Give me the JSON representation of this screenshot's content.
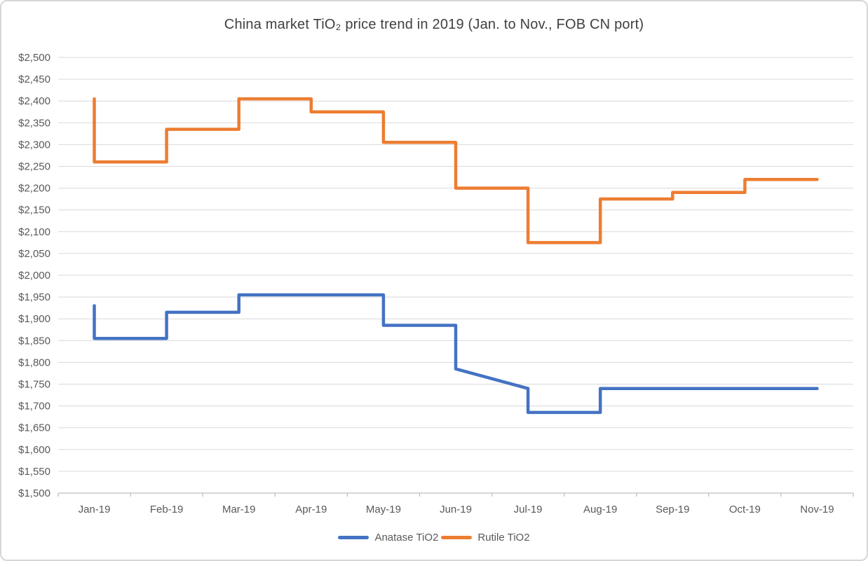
{
  "frame": {
    "background": "#ffffff",
    "border_color": "#d6d6d6"
  },
  "chart_data": {
    "type": "line",
    "line_style": "step",
    "title": "China market TiO₂ price trend in 2019 (Jan. to Nov., FOB CN port)",
    "title_color": "#404040",
    "xlabel": "",
    "ylabel": "",
    "categories": [
      "Jan-19",
      "Feb-19",
      "Mar-19",
      "Apr-19",
      "May-19",
      "Jun-19",
      "Jul-19",
      "Aug-19",
      "Sep-19",
      "Oct-19",
      "Nov-19"
    ],
    "y_axis": {
      "min": 1500,
      "max": 2500,
      "step": 50,
      "tick_values": [
        1500,
        1550,
        1600,
        1650,
        1700,
        1750,
        1800,
        1850,
        1900,
        1950,
        2000,
        2050,
        2100,
        2150,
        2200,
        2250,
        2300,
        2350,
        2400,
        2450,
        2500
      ],
      "tick_labels": [
        "$1,500",
        "$1,550",
        "$1,600",
        "$1,650",
        "$1,700",
        "$1,750",
        "$1,800",
        "$1,850",
        "$1,900",
        "$1,950",
        "$2,000",
        "$2,050",
        "$2,100",
        "$2,150",
        "$2,200",
        "$2,250",
        "$2,300",
        "$2,350",
        "$2,400",
        "$2,450",
        "$2,500"
      ]
    },
    "grid": true,
    "gridline_color": "#d9d9d9",
    "axis_line_color": "#bfbfbf",
    "text_color": "#595959",
    "legend": {
      "position": "bottom",
      "entries": [
        "Anatase TiO2",
        "Rutile TiO2"
      ]
    },
    "series": [
      {
        "name": "Anatase TiO2",
        "color": "#4472C4",
        "points": [
          [
            0,
            1930
          ],
          [
            0,
            1855
          ],
          [
            1,
            1855
          ],
          [
            1,
            1915
          ],
          [
            2,
            1915
          ],
          [
            2,
            1955
          ],
          [
            4,
            1955
          ],
          [
            4,
            1885
          ],
          [
            5,
            1885
          ],
          [
            5,
            1785
          ],
          [
            6,
            1740
          ],
          [
            6,
            1685
          ],
          [
            7,
            1685
          ],
          [
            7,
            1740
          ],
          [
            10,
            1740
          ]
        ]
      },
      {
        "name": "Rutile TiO2",
        "color": "#ED7D31",
        "points": [
          [
            0,
            2405
          ],
          [
            0,
            2260
          ],
          [
            1,
            2260
          ],
          [
            1,
            2335
          ],
          [
            2,
            2335
          ],
          [
            2,
            2405
          ],
          [
            3,
            2405
          ],
          [
            3,
            2375
          ],
          [
            4,
            2375
          ],
          [
            4,
            2305
          ],
          [
            5,
            2305
          ],
          [
            5,
            2200
          ],
          [
            6,
            2200
          ],
          [
            6,
            2075
          ],
          [
            7,
            2075
          ],
          [
            7,
            2175
          ],
          [
            8,
            2175
          ],
          [
            8,
            2190
          ],
          [
            9,
            2190
          ],
          [
            9,
            2220
          ],
          [
            10,
            2220
          ]
        ]
      }
    ]
  }
}
